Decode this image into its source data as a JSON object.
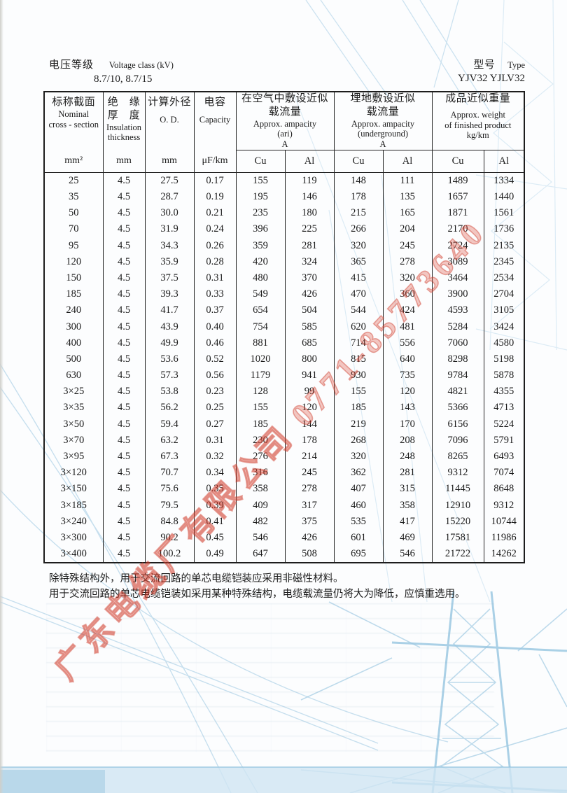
{
  "header": {
    "voltage_label_zh": "电压等级",
    "voltage_label_en": "Voltage class (kV)",
    "voltage_value": "8.7/10, 8.7/15",
    "type_label_zh": "型号",
    "type_label_en": "Type",
    "type_value": "YJV32  YJLV32"
  },
  "table": {
    "head": {
      "nominal_zh": "标称截面",
      "nominal_en1": "Nominal",
      "nominal_en2": "cross - section",
      "nominal_unit": "mm²",
      "insulation_zh1": "绝　缘",
      "insulation_zh2": "厚　度",
      "insulation_en1": "Insulation",
      "insulation_en2": "thickness",
      "insulation_unit": "mm",
      "od_zh": "计算外径",
      "od_en": "O. D.",
      "od_unit": "mm",
      "capacity_zh": "电容",
      "capacity_en": "Capacity",
      "capacity_unit": "μF/km",
      "air_zh1": "在空气中敷设近似",
      "air_zh2": "载流量",
      "air_en1": "Approx. ampacity",
      "air_en2": "(ari)",
      "air_en3": "A",
      "air_cu": "Cu",
      "air_al": "Al",
      "ug_zh1": "埋地敷设近似",
      "ug_zh2": "载流量",
      "ug_en1": "Approx. ampacity",
      "ug_en2": "(underground)",
      "ug_en3": "A",
      "ug_cu": "Cu",
      "ug_al": "Al",
      "wt_zh": "成品近似重量",
      "wt_en1": "Approx. weight",
      "wt_en2": "of finished product",
      "wt_en3": "kg/km",
      "wt_cu": "Cu",
      "wt_al": "Al"
    },
    "rows": [
      [
        "25",
        "4.5",
        "27.5",
        "0.17",
        "155",
        "119",
        "148",
        "111",
        "1489",
        "1334"
      ],
      [
        "35",
        "4.5",
        "28.7",
        "0.19",
        "195",
        "146",
        "178",
        "135",
        "1657",
        "1440"
      ],
      [
        "50",
        "4.5",
        "30.0",
        "0.21",
        "235",
        "180",
        "215",
        "165",
        "1871",
        "1561"
      ],
      [
        "70",
        "4.5",
        "31.9",
        "0.24",
        "396",
        "225",
        "266",
        "204",
        "2170",
        "1736"
      ],
      [
        "95",
        "4.5",
        "34.3",
        "0.26",
        "359",
        "281",
        "320",
        "245",
        "2724",
        "2135"
      ],
      [
        "120",
        "4.5",
        "35.9",
        "0.28",
        "420",
        "324",
        "365",
        "278",
        "3089",
        "2345"
      ],
      [
        "150",
        "4.5",
        "37.5",
        "0.31",
        "480",
        "370",
        "415",
        "320",
        "3464",
        "2534"
      ],
      [
        "185",
        "4.5",
        "39.3",
        "0.33",
        "549",
        "426",
        "470",
        "360",
        "3900",
        "2704"
      ],
      [
        "240",
        "4.5",
        "41.7",
        "0.37",
        "654",
        "504",
        "544",
        "424",
        "4593",
        "3105"
      ],
      [
        "300",
        "4.5",
        "43.9",
        "0.40",
        "754",
        "585",
        "620",
        "481",
        "5284",
        "3424"
      ],
      [
        "400",
        "4.5",
        "49.9",
        "0.46",
        "881",
        "685",
        "714",
        "556",
        "7060",
        "4580"
      ],
      [
        "500",
        "4.5",
        "53.6",
        "0.52",
        "1020",
        "800",
        "815",
        "640",
        "8298",
        "5198"
      ],
      [
        "630",
        "4.5",
        "57.3",
        "0.56",
        "1179",
        "941",
        "930",
        "735",
        "9784",
        "5878"
      ],
      [
        "3×25",
        "4.5",
        "53.8",
        "0.23",
        "128",
        "99",
        "155",
        "120",
        "4821",
        "4355"
      ],
      [
        "3×35",
        "4.5",
        "56.2",
        "0.25",
        "155",
        "120",
        "185",
        "143",
        "5366",
        "4713"
      ],
      [
        "3×50",
        "4.5",
        "59.4",
        "0.27",
        "185",
        "144",
        "219",
        "170",
        "6156",
        "5224"
      ],
      [
        "3×70",
        "4.5",
        "63.2",
        "0.31",
        "230",
        "178",
        "268",
        "208",
        "7096",
        "5791"
      ],
      [
        "3×95",
        "4.5",
        "67.3",
        "0.32",
        "276",
        "214",
        "320",
        "248",
        "8265",
        "6493"
      ],
      [
        "3×120",
        "4.5",
        "70.7",
        "0.34",
        "316",
        "245",
        "362",
        "281",
        "9312",
        "7074"
      ],
      [
        "3×150",
        "4.5",
        "75.6",
        "0.35",
        "358",
        "278",
        "407",
        "315",
        "11445",
        "8648"
      ],
      [
        "3×185",
        "4.5",
        "79.5",
        "0.39",
        "409",
        "317",
        "460",
        "358",
        "12910",
        "9312"
      ],
      [
        "3×240",
        "4.5",
        "84.8",
        "0.41",
        "482",
        "375",
        "535",
        "417",
        "15220",
        "10744"
      ],
      [
        "3×300",
        "4.5",
        "90.2",
        "0.45",
        "546",
        "426",
        "601",
        "469",
        "17581",
        "11986"
      ],
      [
        "3×400",
        "4.5",
        "100.2",
        "0.49",
        "647",
        "508",
        "695",
        "546",
        "21722",
        "14262"
      ]
    ]
  },
  "notes": [
    "除特殊结构外，用于交流回路的单芯电缆铠装应采用非磁性材料。",
    "用于交流回路的单芯电缆铠装如采用某种特殊结构，电缆载流量仍将大为降低，应慎重选用。"
  ],
  "watermark": {
    "text": "广东电缆厂有限公司 0771-85773640",
    "color": "#db4834"
  },
  "colors": {
    "paper": "#fcfdfe",
    "artwork_blue": "#a5cde5",
    "border_black": "#1d1d1d"
  }
}
